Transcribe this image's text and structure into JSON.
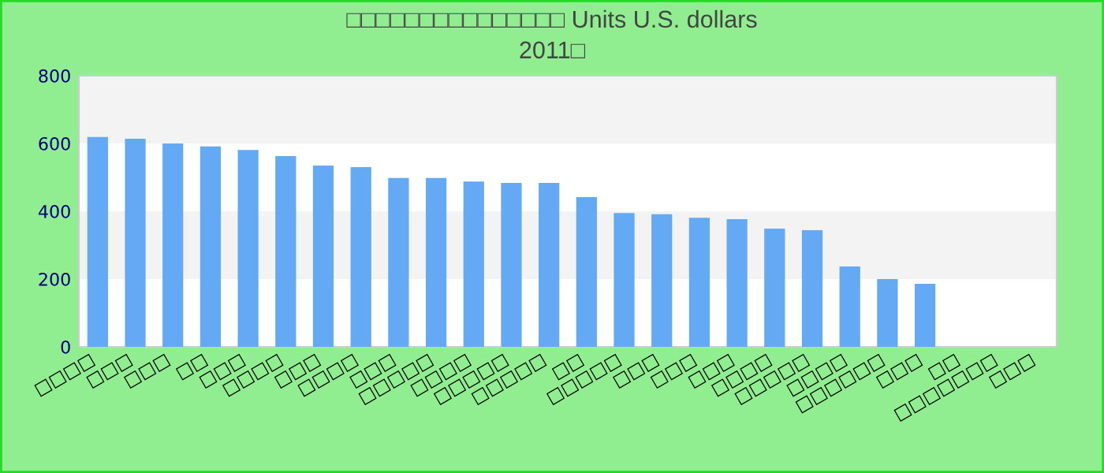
{
  "chart_data": {
    "type": "bar",
    "title": "□□□□□□□□□□□□□□□ Units U.S. dollars",
    "subtitle": "2011□",
    "categories": [
      "□□□□",
      "□□□",
      "□□□",
      "□□",
      "□□□",
      "□□□□",
      "□□□",
      "□□□□",
      "□□□",
      "□□□□□",
      "□□□□",
      "□□□□□",
      "□□□□□",
      "□□",
      "□□□□□",
      "□□□",
      "□□□",
      "□□□",
      "□□□□",
      "□□□□□",
      "□□□□",
      "□□□□□□",
      "□□□",
      "□□",
      "□□□□□□□",
      "□□□"
    ],
    "values": [
      619,
      614,
      600,
      591,
      581,
      563,
      535,
      530,
      498,
      498,
      488,
      484,
      484,
      442,
      395,
      391,
      381,
      377,
      349,
      344,
      237,
      200,
      186,
      null,
      null,
      null
    ],
    "color": "#63a9f3",
    "ylim": [
      0,
      800
    ],
    "yticks": [
      0,
      200,
      400,
      600,
      800
    ],
    "grid": false,
    "bands": [
      {
        "axis": "y",
        "from": 200,
        "to": 400,
        "color": "#f3f3f3"
      },
      {
        "axis": "y",
        "from": 600,
        "to": 800,
        "color": "#f3f3f3"
      }
    ]
  }
}
